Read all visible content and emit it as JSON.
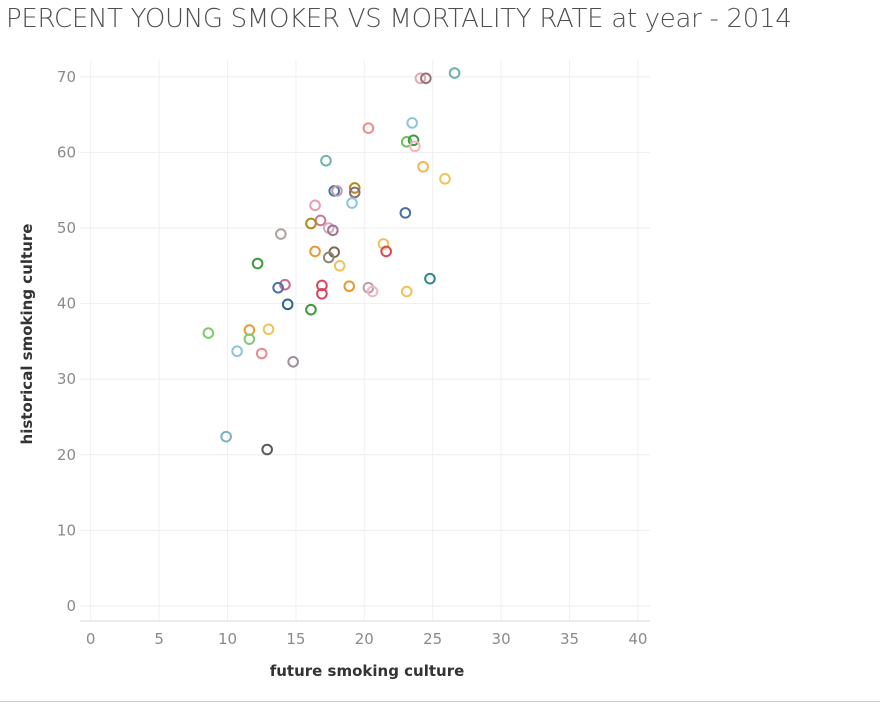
{
  "chart_data": {
    "type": "scatter",
    "title": "PERCENT YOUNG SMOKER VS MORTALITY RATE at year - 2014",
    "xlabel": "future smoking culture",
    "ylabel": "historical smoking culture",
    "xlim": [
      0,
      41
    ],
    "ylim": [
      0,
      75
    ],
    "xticks": [
      0,
      5,
      10,
      15,
      20,
      25,
      30,
      35,
      40
    ],
    "yticks": [
      0,
      10,
      20,
      30,
      40,
      50,
      60,
      70
    ],
    "grid": true,
    "marker": "hollow-circle",
    "points": [
      {
        "x": 26.6,
        "y": 70.5,
        "color": "#6bb1a8"
      },
      {
        "x": 24.1,
        "y": 69.8,
        "color": "#e4a8b8"
      },
      {
        "x": 24.5,
        "y": 69.8,
        "color": "#9a6f78"
      },
      {
        "x": 20.3,
        "y": 63.2,
        "color": "#ee8a8a"
      },
      {
        "x": 23.5,
        "y": 63.9,
        "color": "#8ec4de"
      },
      {
        "x": 23.1,
        "y": 61.4,
        "color": "#6cbf5b"
      },
      {
        "x": 23.6,
        "y": 61.6,
        "color": "#3f9a3f"
      },
      {
        "x": 23.7,
        "y": 60.8,
        "color": "#f3b7c3"
      },
      {
        "x": 17.2,
        "y": 58.9,
        "color": "#6fb4aa"
      },
      {
        "x": 24.3,
        "y": 58.1,
        "color": "#f2b84b"
      },
      {
        "x": 25.9,
        "y": 56.5,
        "color": "#efc35a"
      },
      {
        "x": 19.3,
        "y": 55.3,
        "color": "#b08a1e"
      },
      {
        "x": 19.3,
        "y": 54.7,
        "color": "#8a6f70"
      },
      {
        "x": 17.8,
        "y": 54.9,
        "color": "#4f72a6"
      },
      {
        "x": 18.0,
        "y": 54.9,
        "color": "#b9a0a8"
      },
      {
        "x": 19.1,
        "y": 53.3,
        "color": "#8ec4de"
      },
      {
        "x": 16.4,
        "y": 53.0,
        "color": "#ee9ab0"
      },
      {
        "x": 23.0,
        "y": 52.0,
        "color": "#4a6f9f"
      },
      {
        "x": 16.8,
        "y": 51.0,
        "color": "#c97b8a"
      },
      {
        "x": 16.1,
        "y": 50.6,
        "color": "#b08a1e"
      },
      {
        "x": 17.4,
        "y": 50.0,
        "color": "#d8a9c3"
      },
      {
        "x": 17.7,
        "y": 49.7,
        "color": "#9d7694"
      },
      {
        "x": 13.9,
        "y": 49.2,
        "color": "#b0a0a0"
      },
      {
        "x": 21.4,
        "y": 47.9,
        "color": "#efc35a"
      },
      {
        "x": 21.6,
        "y": 46.9,
        "color": "#d9455f"
      },
      {
        "x": 16.4,
        "y": 46.9,
        "color": "#e89a30"
      },
      {
        "x": 17.8,
        "y": 46.8,
        "color": "#7a6a50"
      },
      {
        "x": 17.4,
        "y": 46.1,
        "color": "#8e8478"
      },
      {
        "x": 12.2,
        "y": 45.3,
        "color": "#3f9a3f"
      },
      {
        "x": 18.2,
        "y": 45.0,
        "color": "#efc35a"
      },
      {
        "x": 24.8,
        "y": 43.3,
        "color": "#2f8a88"
      },
      {
        "x": 14.2,
        "y": 42.5,
        "color": "#d46a86"
      },
      {
        "x": 13.7,
        "y": 42.1,
        "color": "#4f72a6"
      },
      {
        "x": 16.9,
        "y": 42.4,
        "color": "#d9455f"
      },
      {
        "x": 18.9,
        "y": 42.3,
        "color": "#e89a30"
      },
      {
        "x": 20.3,
        "y": 42.1,
        "color": "#b9a0a8"
      },
      {
        "x": 20.6,
        "y": 41.6,
        "color": "#f3b7c3"
      },
      {
        "x": 23.1,
        "y": 41.6,
        "color": "#efc35a"
      },
      {
        "x": 16.9,
        "y": 41.3,
        "color": "#d9455f"
      },
      {
        "x": 14.4,
        "y": 39.9,
        "color": "#2f5f9a"
      },
      {
        "x": 16.1,
        "y": 39.2,
        "color": "#3f9a3f"
      },
      {
        "x": 11.6,
        "y": 36.5,
        "color": "#e89a30"
      },
      {
        "x": 13.0,
        "y": 36.6,
        "color": "#efc35a"
      },
      {
        "x": 8.6,
        "y": 36.1,
        "color": "#7ccc6c"
      },
      {
        "x": 11.6,
        "y": 35.3,
        "color": "#7ccc6c"
      },
      {
        "x": 10.7,
        "y": 33.7,
        "color": "#8ec4de"
      },
      {
        "x": 12.5,
        "y": 33.4,
        "color": "#ee8a8a"
      },
      {
        "x": 14.8,
        "y": 32.3,
        "color": "#a08e9a"
      },
      {
        "x": 9.9,
        "y": 22.4,
        "color": "#7fb1bd"
      },
      {
        "x": 12.9,
        "y": 20.7,
        "color": "#5a5a5a"
      }
    ]
  }
}
